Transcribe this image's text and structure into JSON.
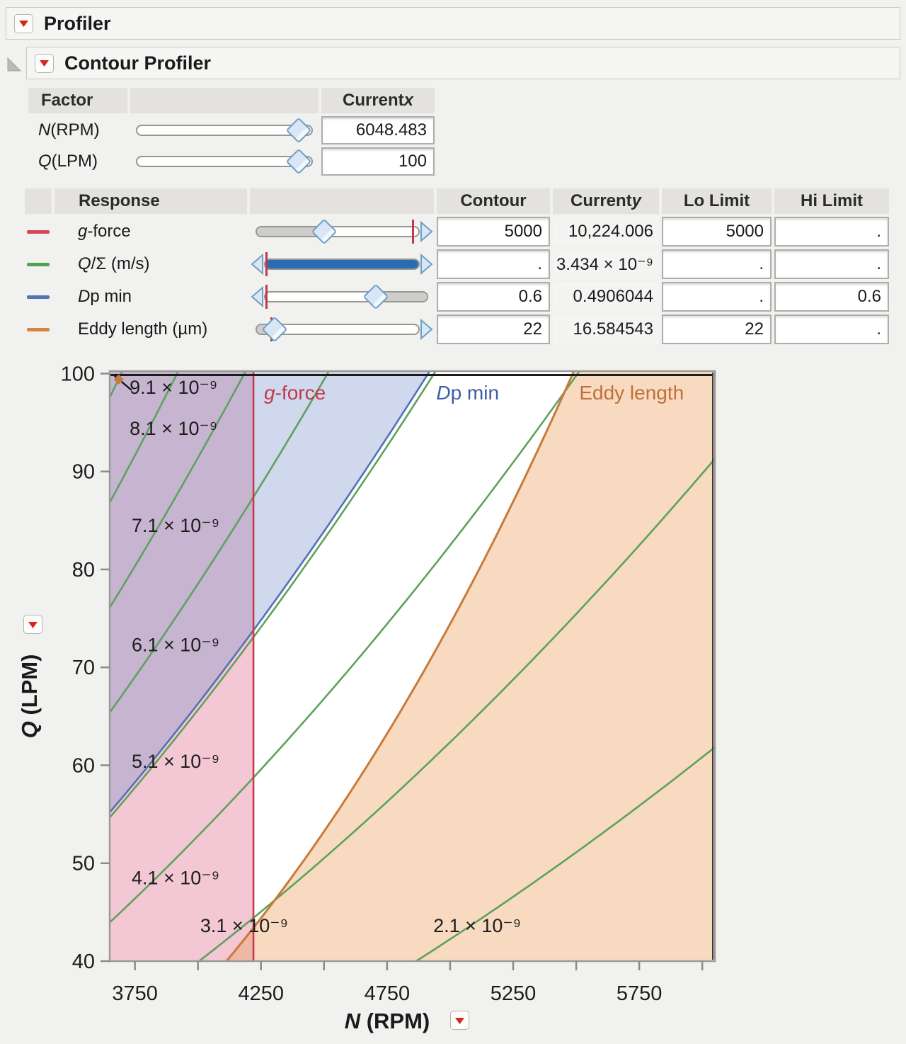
{
  "outline": {
    "profiler_title": "Profiler",
    "contour_title": "Contour Profiler"
  },
  "accent": {
    "red_triangle": "#d7261d",
    "slider_blue_fill": "#2a6cb4",
    "slider_gray_fill": "#cecdc9"
  },
  "factors": {
    "headers": {
      "factor": "Factor",
      "current_x_pre": "Current ",
      "current_x_it": "x"
    },
    "rows": [
      {
        "parts": [
          {
            "t": "N",
            "i": true
          },
          {
            "t": " (RPM)"
          }
        ],
        "value": "6048.483",
        "slider": {
          "handle": 0.92
        }
      },
      {
        "parts": [
          {
            "t": "Q",
            "i": true
          },
          {
            "t": " (LPM)"
          }
        ],
        "value": "100",
        "slider": {
          "handle": 0.92
        }
      }
    ]
  },
  "responses": {
    "headers": {
      "response": "Response",
      "contour": "Contour",
      "current_y_pre": "Current ",
      "current_y_it": "y",
      "lo": "Lo Limit",
      "hi": "Hi Limit"
    },
    "rows": [
      {
        "parts": [
          {
            "t": "g",
            "i": true
          },
          {
            "t": "-force"
          }
        ],
        "color": "#d14a5c",
        "contour": "5000",
        "current_y": "10,224.006",
        "lo": "5000",
        "hi": ".",
        "slider": {
          "handle": 0.42,
          "fill": [
            0,
            0.42
          ],
          "fill_color": "#cecdc9",
          "tick": 0.955,
          "right_arrow": true
        }
      },
      {
        "parts": [
          {
            "t": "Q",
            "i": true
          },
          {
            "t": "/Σ (m/s)"
          }
        ],
        "color": "#4fa352",
        "contour": ".",
        "current_y": "3.434 × 10⁻⁹",
        "lo": ".",
        "hi": ".",
        "slider": {
          "fill": [
            0,
            1
          ],
          "fill_color": "#2a6cb4",
          "tick": 0.012,
          "left_arrow": true,
          "right_arrow": true
        }
      },
      {
        "parts": [
          {
            "t": "D",
            "i": true
          },
          {
            "t": "p min"
          }
        ],
        "color": "#5872b8",
        "contour": "0.6",
        "current_y": "0.4906044",
        "lo": ".",
        "hi": "0.6",
        "slider": {
          "handle": 0.68,
          "fill": [
            0.68,
            1
          ],
          "fill_color": "#cecdc9",
          "tick": 0.012,
          "left_arrow": true
        }
      },
      {
        "parts": [
          {
            "t": "Eddy length (µm)"
          }
        ],
        "color": "#d6873f",
        "contour": "22",
        "current_y": "16.584543",
        "lo": "22",
        "hi": ".",
        "slider": {
          "handle": 0.115,
          "fill": [
            0,
            0.05
          ],
          "fill_color": "#cecdc9",
          "tick": 0.095,
          "right_arrow": true
        }
      }
    ]
  },
  "chart_data": {
    "type": "contour",
    "x_axis": {
      "label_parts": [
        {
          "t": "N",
          "i": true
        },
        {
          "t": " (RPM)"
        }
      ],
      "range": [
        3650,
        6050
      ],
      "ticks": [
        3750,
        4000,
        4250,
        4500,
        4750,
        5000,
        5250,
        5500,
        5750,
        6000
      ],
      "labeled_ticks": [
        3750,
        4250,
        4750,
        5250,
        5750
      ]
    },
    "y_axis": {
      "label_parts": [
        {
          "t": "Q",
          "i": true
        },
        {
          "t": " (LPM)"
        }
      ],
      "range": [
        40,
        100.25
      ],
      "labeled_ticks": [
        40,
        50,
        60,
        70,
        80,
        90,
        100
      ]
    },
    "grid": false,
    "crosshair": {
      "n": 6048.483,
      "q": 100,
      "color": "#1b1b1b"
    },
    "qsigma_contours": {
      "color": "#5ca25c",
      "model": "Q = coef * v * (N/1000)^2 ; v in 1e-9 m/s",
      "coef": 0.8046,
      "levels": [
        {
          "v": 9.1,
          "label": "9.1 × 10⁻⁹",
          "label_at": [
            3729,
            98.6
          ]
        },
        {
          "v": 8.1,
          "label": "8.1 × 10⁻⁹",
          "label_at": [
            3729,
            94.4
          ]
        },
        {
          "v": 7.1,
          "label": "7.1 × 10⁻⁹",
          "label_at": [
            3737,
            84.5
          ]
        },
        {
          "v": 6.1,
          "label": "6.1 × 10⁻⁹",
          "label_at": [
            3737,
            72.3
          ]
        },
        {
          "v": 5.1,
          "label": "5.1 × 10⁻⁹",
          "label_at": [
            3737,
            60.4
          ]
        },
        {
          "v": 4.1,
          "label": "4.1 × 10⁻⁹",
          "label_at": [
            3737,
            48.5
          ]
        },
        {
          "v": 3.1,
          "label": "3.1 × 10⁻⁹",
          "label_at": [
            4009,
            43.6
          ]
        },
        {
          "v": 2.1,
          "label": "2.1 × 10⁻⁹",
          "label_at": [
            4933,
            43.6
          ]
        }
      ]
    },
    "boundaries": [
      {
        "id": "g-force",
        "type": "vline",
        "n": 4220,
        "contour_value": 5000,
        "line_color": "#c93a4e",
        "label": {
          "parts": [
            {
              "t": "g",
              "i": true
            },
            {
              "t": "-force"
            }
          ],
          "color": "#c33a4e",
          "at": [
            4262,
            98.0
          ]
        },
        "region": {
          "side": "left",
          "fill": "rgba(226,116,148,0.40)"
        }
      },
      {
        "id": "dp-min",
        "type": "quad",
        "q_coef": 4.143,
        "contour_value": 0.6,
        "line_color": "#5570b3",
        "label": {
          "parts": [
            {
              "t": "D",
              "i": true
            },
            {
              "t": "p min"
            }
          ],
          "color": "#3a5fa8",
          "at": [
            4945,
            98.0
          ]
        },
        "region": {
          "side": "above",
          "fill": "rgba(122,146,204,0.36)"
        }
      },
      {
        "id": "eddy-length",
        "type": "powerlaw",
        "n0": 4113,
        "q0": 40,
        "k": 3.18,
        "contour_value": 22,
        "line_color": "#c87a3a",
        "label": {
          "parts": [
            {
              "t": "Eddy length"
            }
          ],
          "color": "#c0703a",
          "at": [
            5512,
            98.0
          ]
        },
        "region": {
          "side": "right",
          "fill": "rgba(233,158,90,0.38)"
        }
      }
    ],
    "annotation": {
      "arrow_from": [
        3668,
        99.8
      ],
      "arrow_to": [
        3737,
        98.3
      ],
      "marker_at": [
        3686,
        99.4
      ],
      "marker_color": "#c87a3a"
    }
  }
}
